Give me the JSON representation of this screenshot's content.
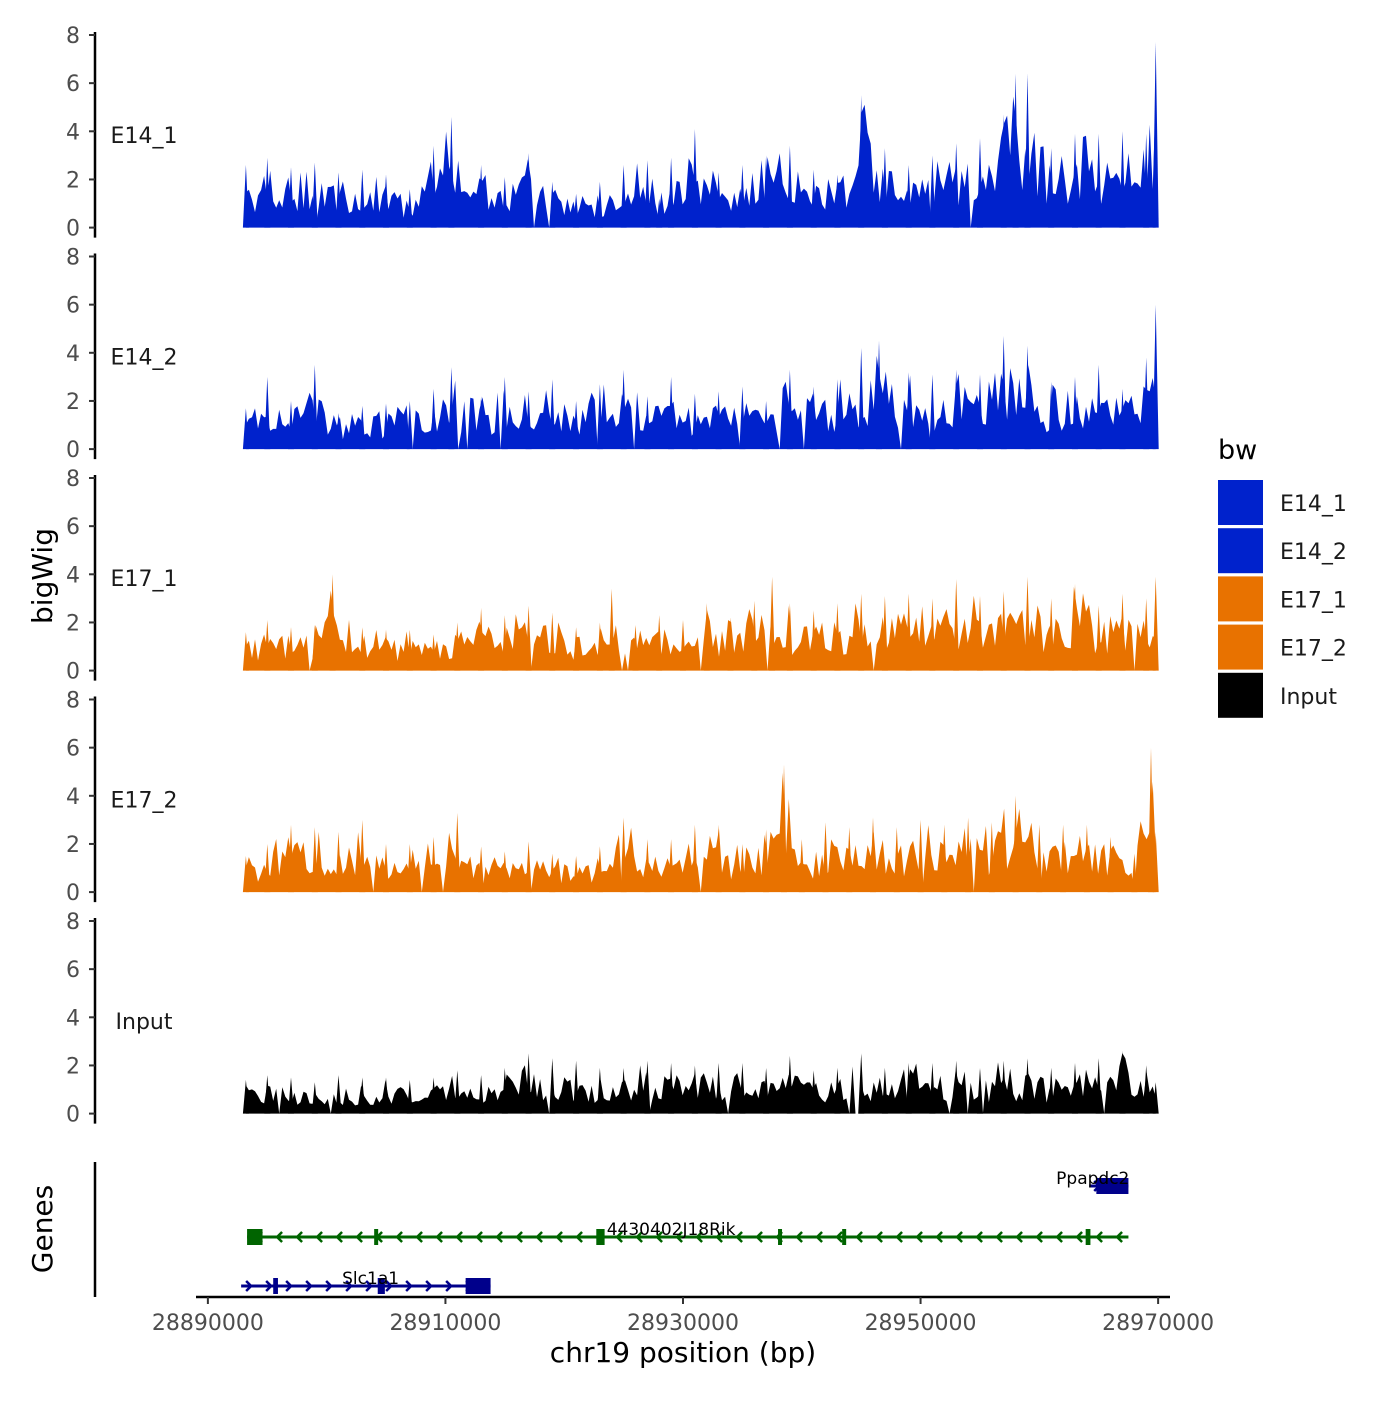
{
  "chart_data": {
    "type": "area",
    "title": "",
    "xlabel": "chr19 position (bp)",
    "ylabel": "bigWig",
    "genes_label": "Genes",
    "xlim": [
      28889000,
      28971000
    ],
    "x_ticks": [
      28890000,
      28910000,
      28930000,
      28950000,
      28970000
    ],
    "x_tick_labels": [
      "28890000",
      "28910000",
      "28930000",
      "28950000",
      "28970000"
    ],
    "ylim": [
      0,
      8
    ],
    "y_ticks": [
      0,
      2,
      4,
      6,
      8
    ],
    "y_tick_labels": [
      "0",
      "2",
      "4",
      "6",
      "8"
    ],
    "legend": {
      "title": "bw",
      "position": "right",
      "entries": [
        {
          "label": "E14_1",
          "color": "#0022cc"
        },
        {
          "label": "E14_2",
          "color": "#0022cc"
        },
        {
          "label": "E17_1",
          "color": "#e87200"
        },
        {
          "label": "E17_2",
          "color": "#e87200"
        },
        {
          "label": "Input",
          "color": "#000000"
        }
      ]
    },
    "track_range_bp": [
      28893200,
      28969800
    ],
    "series": [
      {
        "name": "E14_1",
        "color": "#0022cc",
        "x": [
          28893200,
          28895000,
          28897000,
          28899000,
          28901000,
          28903000,
          28905000,
          28907000,
          28909000,
          28910500,
          28913000,
          28915000,
          28917000,
          28919000,
          28921000,
          28923000,
          28925000,
          28927000,
          28928000,
          28929000,
          28931000,
          28933000,
          28935000,
          28937000,
          28939000,
          28941000,
          28943000,
          28945000,
          28947000,
          28949000,
          28951000,
          28953000,
          28955000,
          28957000,
          28958000,
          28959000,
          28961000,
          28963000,
          28965000,
          28967000,
          28969000,
          28969800
        ],
        "values": [
          2.6,
          2.9,
          2.5,
          2.7,
          2.3,
          2.4,
          2.2,
          1.6,
          3.4,
          4.6,
          2.6,
          2.1,
          3.1,
          1.9,
          1.4,
          1.9,
          2.6,
          2.8,
          1.2,
          2.9,
          4.1,
          2.3,
          2.6,
          3.0,
          3.4,
          2.4,
          2.2,
          5.5,
          3.3,
          2.6,
          3.0,
          3.5,
          3.7,
          4.7,
          6.4,
          6.4,
          3.3,
          3.9,
          3.9,
          4.0,
          3.9,
          7.7
        ]
      },
      {
        "name": "E14_2",
        "color": "#0022cc",
        "x": [
          28893200,
          28895000,
          28897000,
          28899000,
          28901000,
          28903000,
          28905000,
          28907000,
          28909000,
          28910500,
          28913000,
          28915000,
          28917000,
          28919000,
          28921000,
          28923000,
          28925000,
          28927000,
          28929000,
          28931000,
          28933000,
          28935000,
          28937000,
          28939000,
          28941000,
          28943000,
          28945000,
          28946500,
          28949000,
          28951000,
          28953000,
          28955000,
          28957000,
          28959000,
          28961000,
          28963000,
          28965000,
          28967000,
          28969000,
          28969800
        ],
        "values": [
          1.7,
          3.0,
          2.0,
          3.5,
          1.5,
          1.8,
          1.9,
          2.0,
          2.5,
          3.4,
          2.2,
          3.0,
          2.4,
          2.9,
          2.0,
          2.7,
          3.3,
          2.2,
          3.0,
          2.3,
          2.4,
          2.6,
          2.0,
          3.3,
          2.6,
          2.9,
          4.2,
          4.5,
          3.2,
          3.1,
          3.3,
          3.1,
          4.7,
          4.3,
          2.8,
          3.0,
          3.5,
          2.5,
          3.8,
          6.0
        ]
      },
      {
        "name": "E17_1",
        "color": "#e87200",
        "x": [
          28893200,
          28895000,
          28897000,
          28899000,
          28900500,
          28903000,
          28905000,
          28907000,
          28909000,
          28911000,
          28913000,
          28915000,
          28917000,
          28919000,
          28921000,
          28923000,
          28924000,
          28926000,
          28928000,
          28930000,
          28932000,
          28934000,
          28936000,
          28937500,
          28939000,
          28941000,
          28943000,
          28945000,
          28947000,
          28949000,
          28951000,
          28953000,
          28955000,
          28957000,
          28959000,
          28961000,
          28963000,
          28965000,
          28967000,
          28969000,
          28969800
        ],
        "values": [
          1.6,
          2.1,
          1.8,
          1.9,
          4.0,
          1.8,
          1.7,
          1.7,
          1.5,
          2.0,
          2.6,
          2.3,
          2.7,
          2.4,
          1.8,
          2.0,
          3.4,
          1.9,
          2.3,
          2.1,
          2.8,
          2.2,
          2.9,
          3.9,
          2.8,
          2.5,
          2.8,
          3.2,
          3.1,
          3.2,
          3.0,
          3.8,
          3.1,
          3.3,
          3.9,
          3.0,
          3.6,
          2.7,
          3.2,
          3.0,
          3.9
        ]
      },
      {
        "name": "E17_2",
        "color": "#e87200",
        "x": [
          28893200,
          28895000,
          28897000,
          28899000,
          28901000,
          28903000,
          28905000,
          28907000,
          28909000,
          28911000,
          28913000,
          28915000,
          28917000,
          28919000,
          28921000,
          28923000,
          28925000,
          28927000,
          28929000,
          28931000,
          28933000,
          28935000,
          28937000,
          28938500,
          28940000,
          28942000,
          28944000,
          28946000,
          28948000,
          28950000,
          28952000,
          28954000,
          28956000,
          28958000,
          28960000,
          28962000,
          28964000,
          28966000,
          28968000,
          28969400,
          28969800
        ],
        "values": [
          1.5,
          2.0,
          2.8,
          2.7,
          2.5,
          3.0,
          2.0,
          2.0,
          2.3,
          3.3,
          1.9,
          1.7,
          2.1,
          1.6,
          1.5,
          1.9,
          3.1,
          2.2,
          2.2,
          2.8,
          2.8,
          2.0,
          2.6,
          5.3,
          2.2,
          2.9,
          2.7,
          3.1,
          2.7,
          3.0,
          2.8,
          3.1,
          2.9,
          4.0,
          2.8,
          2.8,
          2.8,
          2.3,
          1.6,
          6.0,
          2.5
        ]
      },
      {
        "name": "Input",
        "color": "#000000",
        "x": [
          28893200,
          28895000,
          28897000,
          28899000,
          28901000,
          28903000,
          28905000,
          28907000,
          28909000,
          28911000,
          28913000,
          28915000,
          28917000,
          28919000,
          28921000,
          28923000,
          28925000,
          28927000,
          28929000,
          28931000,
          28933000,
          28935000,
          28937000,
          28939000,
          28941000,
          28943000,
          28945000,
          28947000,
          28949000,
          28951000,
          28953000,
          28955000,
          28957000,
          28959000,
          28961000,
          28963000,
          28965000,
          28967000,
          28969000,
          28969800
        ],
        "values": [
          1.4,
          1.6,
          1.5,
          1.3,
          1.6,
          1.5,
          1.5,
          1.4,
          1.5,
          1.8,
          1.6,
          1.9,
          2.5,
          2.3,
          2.2,
          1.9,
          1.9,
          2.2,
          2.1,
          2.0,
          2.1,
          2.1,
          1.9,
          2.4,
          1.8,
          1.9,
          2.5,
          1.9,
          2.1,
          2.1,
          2.2,
          1.9,
          2.2,
          2.3,
          1.9,
          2.1,
          2.3,
          2.6,
          2.0,
          1.3
        ]
      }
    ],
    "genes": [
      {
        "name": "Ppapdc2",
        "strand": "+",
        "color": "#00008b",
        "row": 0,
        "start": 28964200,
        "end": 28967500,
        "label_at": 28964500,
        "exons": [
          [
            28964800,
            28967500
          ]
        ]
      },
      {
        "name": "4430402J18Rik",
        "strand": "-",
        "color": "#006400",
        "row": 1,
        "start": 28893300,
        "end": 28967500,
        "label_at": 28929000,
        "exons": [
          [
            28893300,
            28894600
          ],
          [
            28904000,
            28904300
          ],
          [
            28922700,
            28923400
          ],
          [
            28938000,
            28938300
          ],
          [
            28943400,
            28943700
          ],
          [
            28963900,
            28964300
          ]
        ]
      },
      {
        "name": "Slc1a1",
        "strand": "+",
        "color": "#00008b",
        "row": 2,
        "start": 28892800,
        "end": 28913800,
        "label_at": 28903700,
        "exons": [
          [
            28895500,
            28895900
          ],
          [
            28904300,
            28904900
          ],
          [
            28911700,
            28913800
          ]
        ]
      }
    ]
  }
}
